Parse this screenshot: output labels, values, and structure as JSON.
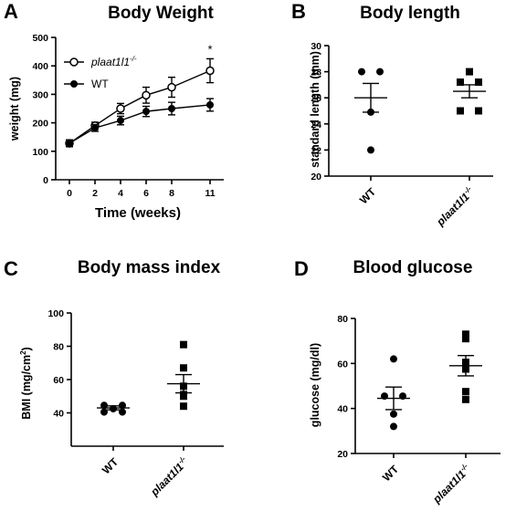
{
  "panels": {
    "A": {
      "letter": "A",
      "title": "Body Weight"
    },
    "B": {
      "letter": "B",
      "title": "Body length"
    },
    "C": {
      "letter": "C",
      "title": "Body mass index"
    },
    "D": {
      "letter": "D",
      "title": "Blood glucose"
    }
  },
  "chart_data": [
    {
      "id": "A",
      "type": "line",
      "title": "Body Weight",
      "xlabel": "Time (weeks)",
      "ylabel": "weight (mg)",
      "x": [
        0,
        2,
        4,
        6,
        8,
        11
      ],
      "x_tick_labels": [
        "0",
        "2",
        "4",
        "6",
        "8",
        "11"
      ],
      "ylim": [
        0,
        500
      ],
      "y_ticks": [
        0,
        100,
        200,
        300,
        400,
        500
      ],
      "legend_position": "top-left",
      "annotation": {
        "text": "*",
        "x": 11
      },
      "series": [
        {
          "name": "plaat1l1-/-",
          "name_main": "plaat1l1",
          "name_sup": "-/-",
          "marker": "open-circle",
          "values": [
            128,
            190,
            250,
            297,
            325,
            383
          ],
          "errors": [
            12,
            12,
            18,
            28,
            35,
            42
          ]
        },
        {
          "name": "WT",
          "marker": "filled-circle",
          "values": [
            128,
            182,
            208,
            240,
            250,
            263
          ],
          "errors": [
            12,
            12,
            15,
            18,
            22,
            22
          ]
        }
      ]
    },
    {
      "id": "B",
      "type": "scatter",
      "title": "Body length",
      "ylabel": "standard length (mm)",
      "ylim": [
        20,
        30
      ],
      "y_ticks": [
        20,
        22,
        24,
        26,
        28,
        30
      ],
      "categories": [
        "WT",
        "plaat1l1-/-"
      ],
      "category_labels": [
        {
          "main": "WT",
          "sup": ""
        },
        {
          "main": "plaat1l1",
          "sup": "-/-"
        }
      ],
      "series": [
        {
          "name": "WT",
          "marker": "filled-circle",
          "points": [
            28.0,
            28.0,
            24.9,
            22.0
          ],
          "mean": 26.0,
          "sem": 1.1
        },
        {
          "name": "plaat1l1-/-",
          "marker": "filled-square",
          "points": [
            28.0,
            27.2,
            27.2,
            25.0,
            25.0
          ],
          "mean": 26.5,
          "sem": 0.5
        }
      ]
    },
    {
      "id": "C",
      "type": "scatter",
      "title": "Body mass index",
      "ylabel_main": "BMI (mg/cm",
      "ylabel_sup": "2",
      "ylabel_end": ")",
      "ylim": [
        20,
        100
      ],
      "y_ticks": [
        40,
        60,
        80,
        100
      ],
      "categories": [
        "WT",
        "plaat1l1-/-"
      ],
      "category_labels": [
        {
          "main": "WT",
          "sup": ""
        },
        {
          "main": "plaat1l1",
          "sup": "-/-"
        }
      ],
      "series": [
        {
          "name": "WT",
          "marker": "filled-circle",
          "points": [
            44.5,
            44.5,
            42.5,
            40.5,
            40.5
          ],
          "mean": 43,
          "sem": 1.2
        },
        {
          "name": "plaat1l1-/-",
          "marker": "filled-square",
          "points": [
            81,
            67,
            56,
            51,
            50,
            44
          ],
          "mean": 57.5,
          "sem": 5.5
        }
      ]
    },
    {
      "id": "D",
      "type": "scatter",
      "title": "Blood glucose",
      "ylabel": "glucose (mg/dl)",
      "ylim": [
        20,
        80
      ],
      "y_ticks": [
        20,
        40,
        60,
        80
      ],
      "categories": [
        "WT",
        "plaat1l1-/-"
      ],
      "category_labels": [
        {
          "main": "WT",
          "sup": ""
        },
        {
          "main": "plaat1l1",
          "sup": "-/-"
        }
      ],
      "series": [
        {
          "name": "WT",
          "marker": "filled-circle",
          "points": [
            62,
            45.5,
            45.5,
            37.5,
            32
          ],
          "mean": 44.5,
          "sem": 5
        },
        {
          "name": "plaat1l1-/-",
          "marker": "filled-square",
          "points": [
            73,
            71,
            60.5,
            57.5,
            47.5,
            44
          ],
          "mean": 59,
          "sem": 4.5
        }
      ]
    }
  ]
}
